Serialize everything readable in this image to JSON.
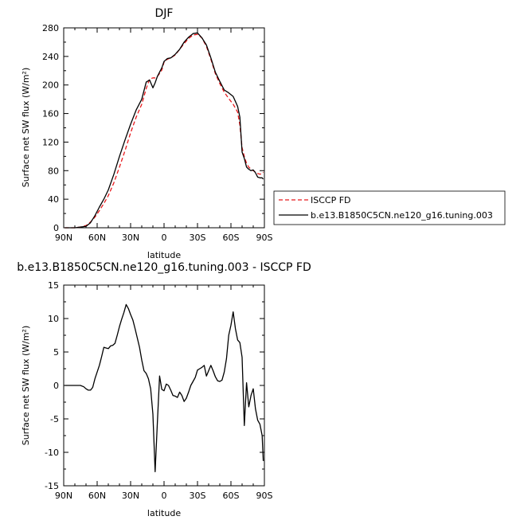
{
  "chart_data": [
    {
      "type": "line",
      "title": "DJF",
      "xlabel": "latitude",
      "ylabel": "Surface net SW flux (W/m²)",
      "xlim": [
        -90,
        90
      ],
      "ylim": [
        0,
        280
      ],
      "x_ticks": [
        -90,
        -60,
        -30,
        0,
        30,
        60,
        90
      ],
      "x_tick_labels": [
        "90N",
        "60N",
        "30N",
        "0",
        "30S",
        "60S",
        "90S"
      ],
      "y_ticks": [
        0,
        40,
        80,
        120,
        160,
        200,
        240,
        280
      ],
      "grid": false,
      "legend_position": "right",
      "series": [
        {
          "name": "ISCCP FD",
          "color": "#e8191c",
          "style": "dashed",
          "x": [
            -89,
            -85,
            -80,
            -75,
            -70,
            -66,
            -62,
            -58,
            -54,
            -50,
            -45,
            -40,
            -35,
            -30,
            -25,
            -20,
            -16,
            -13,
            -10,
            -8,
            -6,
            -4,
            -2,
            0,
            3,
            6,
            10,
            14,
            18,
            22,
            26,
            30,
            34,
            38,
            42,
            46,
            50,
            54,
            58,
            62,
            66,
            68,
            70,
            72,
            74,
            76,
            78,
            80,
            82,
            84,
            86,
            88,
            89
          ],
          "y": [
            0,
            0,
            0,
            1,
            3,
            8,
            15,
            24,
            34,
            45,
            63,
            85,
            108,
            133,
            155,
            173,
            195,
            208,
            210,
            210,
            212,
            216,
            221,
            232,
            236,
            238,
            242,
            250,
            258,
            265,
            270,
            271,
            266,
            254,
            236,
            216,
            202,
            190,
            181,
            173,
            162,
            144,
            112,
            100,
            90,
            85,
            82,
            80,
            78,
            76,
            75,
            76,
            78
          ]
        },
        {
          "name": "b.e13.B1850C5CN.ne120_g16.tuning.003",
          "color": "#000000",
          "style": "solid",
          "x": [
            -89,
            -85,
            -80,
            -75,
            -70,
            -66,
            -62,
            -58,
            -54,
            -50,
            -45,
            -40,
            -35,
            -30,
            -25,
            -20,
            -16,
            -13,
            -10,
            -8,
            -6,
            -4,
            -2,
            0,
            3,
            6,
            10,
            14,
            18,
            22,
            26,
            30,
            34,
            38,
            42,
            46,
            50,
            54,
            58,
            62,
            66,
            68,
            70,
            72,
            74,
            76,
            78,
            80,
            82,
            84,
            86,
            88,
            89
          ],
          "y": [
            0,
            0,
            0,
            1,
            2,
            7,
            17,
            29,
            40,
            53,
            75,
            100,
            123,
            145,
            165,
            180,
            204,
            207,
            196,
            203,
            212,
            218,
            224,
            233,
            237,
            238,
            243,
            250,
            260,
            267,
            272,
            273,
            266,
            256,
            238,
            218,
            205,
            193,
            189,
            184,
            170,
            155,
            106,
            97,
            85,
            82,
            80,
            81,
            77,
            71,
            70,
            70,
            68
          ]
        }
      ]
    },
    {
      "type": "line",
      "title": "b.e13.B1850C5CN.ne120_g16.tuning.003 - ISCCP FD",
      "xlabel": "latitude",
      "ylabel": "Surface net SW flux (W/m²)",
      "xlim": [
        -90,
        90
      ],
      "ylim": [
        -15,
        15
      ],
      "x_ticks": [
        -90,
        -60,
        -30,
        0,
        30,
        60,
        90
      ],
      "x_tick_labels": [
        "90N",
        "60N",
        "30N",
        "0",
        "30S",
        "60S",
        "90S"
      ],
      "y_ticks": [
        -15,
        -10,
        -5,
        0,
        5,
        10,
        15
      ],
      "grid": false,
      "series": [
        {
          "color": "#000000",
          "style": "solid",
          "x": [
            -89,
            -80,
            -75,
            -72,
            -70,
            -68,
            -66,
            -64,
            -62,
            -60,
            -58,
            -56,
            -54,
            -52,
            -50,
            -48,
            -46,
            -44,
            -42,
            -40,
            -38,
            -36,
            -34,
            -32,
            -30,
            -28,
            -26,
            -24,
            -22,
            -20,
            -18,
            -16,
            -14,
            -12,
            -10,
            -9,
            -8,
            -6,
            -4,
            -2,
            0,
            2,
            4,
            6,
            8,
            10,
            12,
            14,
            16,
            18,
            20,
            22,
            24,
            26,
            28,
            30,
            32,
            34,
            36,
            38,
            40,
            42,
            44,
            46,
            48,
            50,
            52,
            54,
            56,
            58,
            60,
            62,
            64,
            66,
            68,
            70,
            72,
            74,
            76,
            78,
            80,
            82,
            84,
            86,
            88,
            89
          ],
          "y": [
            0,
            0,
            0,
            -0.2,
            -0.5,
            -0.7,
            -0.7,
            -0.3,
            1.0,
            2.0,
            3.0,
            4.3,
            5.7,
            5.6,
            5.5,
            5.9,
            6.0,
            6.3,
            7.5,
            8.8,
            9.9,
            10.9,
            12.1,
            11.5,
            10.6,
            9.8,
            8.5,
            7.1,
            5.7,
            3.8,
            2.2,
            1.8,
            1.0,
            -0.5,
            -4.3,
            -8.6,
            -12.9,
            -5.6,
            1.4,
            -0.6,
            -0.8,
            0.2,
            0,
            -0.7,
            -1.5,
            -1.6,
            -1.8,
            -1.0,
            -1.5,
            -2.4,
            -1.9,
            -1.0,
            0,
            0.6,
            1.2,
            2.3,
            2.5,
            2.7,
            3.0,
            1.4,
            2.2,
            3.0,
            2.2,
            1.3,
            0.7,
            0.6,
            0.8,
            2.0,
            4.0,
            7.5,
            9.0,
            11.0,
            8.5,
            6.8,
            6.4,
            4.2,
            -6.0,
            0.4,
            -3.2,
            -1.5,
            -0.5,
            -3.5,
            -5.2,
            -5.8,
            -7.5,
            -11.3
          ]
        }
      ]
    }
  ]
}
